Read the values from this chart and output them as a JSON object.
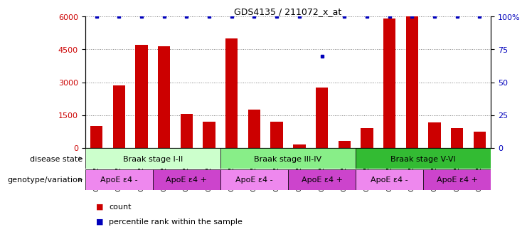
{
  "title": "GDS4135 / 211072_x_at",
  "samples": [
    "GSM735097",
    "GSM735098",
    "GSM735099",
    "GSM735094",
    "GSM735095",
    "GSM735096",
    "GSM735103",
    "GSM735104",
    "GSM735105",
    "GSM735100",
    "GSM735101",
    "GSM735102",
    "GSM735109",
    "GSM735110",
    "GSM735111",
    "GSM735106",
    "GSM735107",
    "GSM735108"
  ],
  "counts": [
    1000,
    2850,
    4700,
    4650,
    1550,
    1200,
    5000,
    1750,
    1200,
    150,
    2750,
    300,
    900,
    5900,
    6000,
    1150,
    900,
    750
  ],
  "percentiles": [
    100,
    100,
    100,
    100,
    100,
    100,
    100,
    100,
    100,
    100,
    70,
    100,
    100,
    100,
    100,
    100,
    100,
    100
  ],
  "ylim_left": [
    0,
    6000
  ],
  "ylim_right": [
    0,
    100
  ],
  "yticks_left": [
    0,
    1500,
    3000,
    4500,
    6000
  ],
  "yticks_right": [
    0,
    25,
    50,
    75,
    100
  ],
  "bar_color": "#cc0000",
  "dot_color": "#0000bb",
  "disease_stages": [
    {
      "label": "Braak stage I-II",
      "start": 0,
      "end": 6,
      "color": "#ccffcc"
    },
    {
      "label": "Braak stage III-IV",
      "start": 6,
      "end": 12,
      "color": "#88ee88"
    },
    {
      "label": "Braak stage V-VI",
      "start": 12,
      "end": 18,
      "color": "#33bb33"
    }
  ],
  "genotype_groups": [
    {
      "label": "ApoE ε4 -",
      "start": 0,
      "end": 3,
      "color": "#ee88ee"
    },
    {
      "label": "ApoE ε4 +",
      "start": 3,
      "end": 6,
      "color": "#cc44cc"
    },
    {
      "label": "ApoE ε4 -",
      "start": 6,
      "end": 9,
      "color": "#ee88ee"
    },
    {
      "label": "ApoE ε4 +",
      "start": 9,
      "end": 12,
      "color": "#cc44cc"
    },
    {
      "label": "ApoE ε4 -",
      "start": 12,
      "end": 15,
      "color": "#ee88ee"
    },
    {
      "label": "ApoE ε4 +",
      "start": 15,
      "end": 18,
      "color": "#cc44cc"
    }
  ],
  "disease_label": "disease state",
  "geno_label": "genotype/variation",
  "legend_count_label": "count",
  "legend_pct_label": "percentile rank within the sample"
}
